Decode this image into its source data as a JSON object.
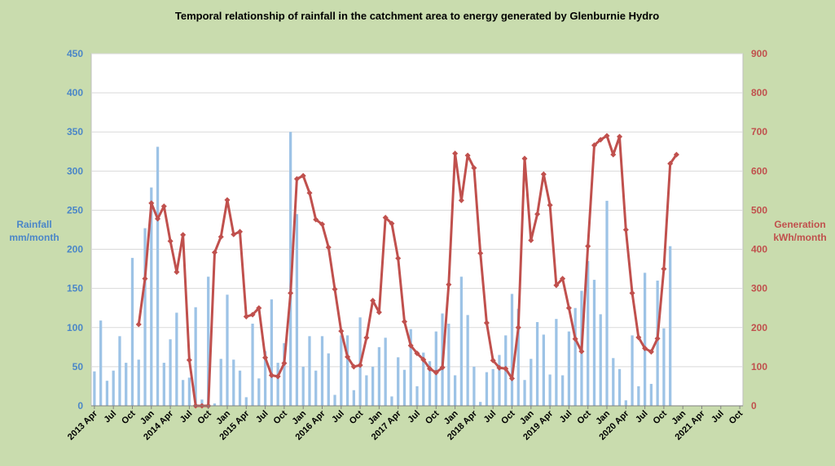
{
  "chart_data": {
    "type": "bar+line",
    "title": "Temporal relationship of rainfall in the catchment area to energy generated by Glenburnie Hydro",
    "ylabel_left": [
      "Rainfall",
      "mm/month"
    ],
    "ylabel_right": [
      "Generation",
      "kWh/month"
    ],
    "ylim_left": [
      0,
      450
    ],
    "ylim_right": [
      0,
      900
    ],
    "yticks_left": [
      "0",
      "50",
      "100",
      "150",
      "200",
      "250",
      "300",
      "350",
      "400",
      "450"
    ],
    "yticks_right": [
      "0",
      "100",
      "200",
      "300",
      "400",
      "500",
      "600",
      "700",
      "800",
      "900"
    ],
    "month_count": 103,
    "x_tick_labels": [
      {
        "i": 0,
        "label": "2013 Apr"
      },
      {
        "i": 3,
        "label": "Jul"
      },
      {
        "i": 6,
        "label": "Oct"
      },
      {
        "i": 9,
        "label": "Jan"
      },
      {
        "i": 12,
        "label": "2014 Apr"
      },
      {
        "i": 15,
        "label": "Jul"
      },
      {
        "i": 18,
        "label": "Oct"
      },
      {
        "i": 21,
        "label": "Jan"
      },
      {
        "i": 24,
        "label": "2015 Apr"
      },
      {
        "i": 27,
        "label": "Jul"
      },
      {
        "i": 30,
        "label": "Oct"
      },
      {
        "i": 33,
        "label": "Jan"
      },
      {
        "i": 36,
        "label": "2016 Apr"
      },
      {
        "i": 39,
        "label": "Jul"
      },
      {
        "i": 42,
        "label": "Oct"
      },
      {
        "i": 45,
        "label": "Jan"
      },
      {
        "i": 48,
        "label": "2017 Apr"
      },
      {
        "i": 51,
        "label": "Jul"
      },
      {
        "i": 54,
        "label": "Oct"
      },
      {
        "i": 57,
        "label": "Jan"
      },
      {
        "i": 60,
        "label": "2018 Apr"
      },
      {
        "i": 63,
        "label": "Jul"
      },
      {
        "i": 66,
        "label": "Oct"
      },
      {
        "i": 69,
        "label": "Jan"
      },
      {
        "i": 72,
        "label": "2019 Apr"
      },
      {
        "i": 75,
        "label": "Jul"
      },
      {
        "i": 78,
        "label": "Oct"
      },
      {
        "i": 81,
        "label": "Jan"
      },
      {
        "i": 84,
        "label": "2020 Apr"
      },
      {
        "i": 87,
        "label": "Jul"
      },
      {
        "i": 90,
        "label": "Oct"
      },
      {
        "i": 93,
        "label": "Jan"
      },
      {
        "i": 96,
        "label": "2021 Apr"
      },
      {
        "i": 99,
        "label": "Jul"
      },
      {
        "i": 102,
        "label": "Oct"
      }
    ],
    "series": [
      {
        "name": "Rainfall",
        "axis": "left",
        "color": "#9dc3e6",
        "values": [
          44,
          109,
          32,
          45,
          89,
          55,
          189,
          59,
          227,
          279,
          331,
          55,
          85,
          119,
          33,
          36,
          126,
          8,
          165,
          3,
          60,
          142,
          59,
          45,
          11,
          105,
          35,
          70,
          136,
          55,
          80,
          350,
          245,
          50,
          89,
          45,
          89,
          67,
          14,
          90,
          90,
          20,
          113,
          39,
          50,
          75,
          87,
          12,
          62,
          46,
          98,
          25,
          68,
          57,
          95,
          118,
          105,
          39,
          165,
          116,
          50,
          5,
          43,
          47,
          65,
          90,
          143,
          124,
          33,
          60,
          107,
          91,
          40,
          111,
          39,
          95,
          125,
          147,
          185,
          161,
          117,
          262,
          61,
          47,
          7,
          90,
          25,
          170,
          28,
          160,
          99,
          204,
          0,
          0,
          0,
          0,
          0,
          0,
          0,
          0,
          0,
          0,
          0
        ]
      },
      {
        "name": "Generation",
        "axis": "right",
        "color": "#c0504d",
        "values": [
          null,
          null,
          null,
          null,
          null,
          null,
          null,
          208,
          325,
          518,
          478,
          510,
          421,
          342,
          437,
          117,
          0,
          0,
          0,
          392,
          432,
          526,
          438,
          445,
          228,
          233,
          250,
          123,
          78,
          75,
          109,
          288,
          580,
          588,
          544,
          476,
          464,
          405,
          298,
          191,
          125,
          100,
          104,
          174,
          269,
          239,
          481,
          466,
          377,
          215,
          154,
          134,
          118,
          95,
          85,
          98,
          310,
          645,
          525,
          640,
          608,
          390,
          212,
          116,
          97,
          95,
          70,
          200,
          632,
          423,
          490,
          592,
          513,
          308,
          325,
          250,
          171,
          139,
          408,
          666,
          680,
          690,
          642,
          688,
          450,
          288,
          175,
          147,
          138,
          172,
          350,
          619,
          642,
          null,
          null,
          null,
          null,
          null,
          null,
          null,
          null,
          null,
          null
        ]
      }
    ]
  }
}
